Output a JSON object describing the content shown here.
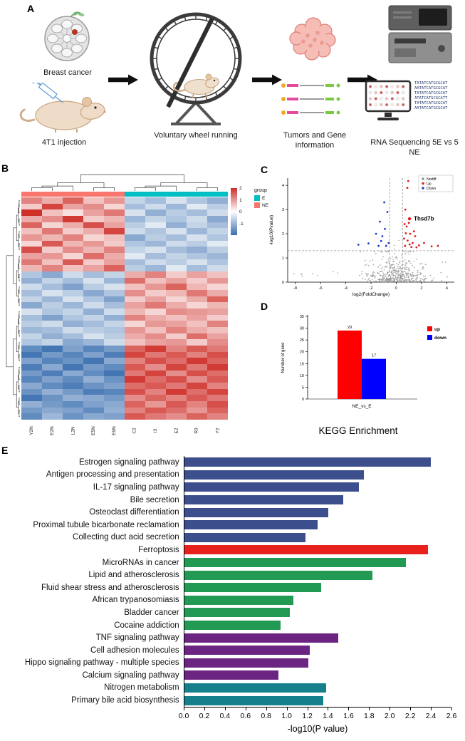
{
  "panels": {
    "a": "A",
    "b": "B",
    "c": "C",
    "d": "D",
    "e": "E"
  },
  "panel_a": {
    "labels": {
      "breast": "Breast cancer",
      "injection": "4T1 injection",
      "wheel": "Voluntary wheel running",
      "tumors": "Tumors and Gene information",
      "rnaseq": "RNA Sequencing 5E vs 5 NE"
    },
    "illustrations": [
      "breast-cancer-illustration",
      "mouse-injection-illustration",
      "running-wheel-illustration",
      "tumor-illustration",
      "gene-reads-illustration",
      "sequencer-illustration",
      "monitor-illustration"
    ],
    "sequence_lines": [
      "TATATCATGCGCAT",
      "AATATCATGCGCAT",
      "TATATCATGCGCAT",
      "ATATCATGCGCATT",
      "TATATCATGCGCAT",
      "AATATCATGCGCAT"
    ]
  },
  "chart_data": [
    {
      "id": "heatmap",
      "type": "heatmap",
      "legend_title": "group",
      "groups": [
        {
          "name": "E",
          "color": "#00BFC4"
        },
        {
          "name": "NE",
          "color": "#F8766D"
        }
      ],
      "scale_labels": [
        "2",
        "1",
        "0",
        "-1"
      ],
      "col_labels": [
        "Y2N",
        "E2N",
        "L2N",
        "E5N",
        "E9N",
        "C2",
        "I3",
        "E2",
        "R3",
        "Y2"
      ],
      "col_groups": [
        "NE",
        "NE",
        "NE",
        "NE",
        "NE",
        "E",
        "E",
        "E",
        "E",
        "E"
      ],
      "matrix": [
        [
          1.2,
          0.8,
          1.5,
          0.6,
          1.0,
          -0.6,
          -0.9,
          -0.4,
          -0.8,
          -1.1
        ],
        [
          0.5,
          1.8,
          0.9,
          1.1,
          0.4,
          -0.9,
          -0.5,
          -1.0,
          -0.3,
          -0.7
        ],
        [
          2.0,
          0.6,
          0.3,
          0.9,
          1.3,
          -0.4,
          -1.1,
          -0.7,
          -0.9,
          -0.5
        ],
        [
          0.8,
          1.1,
          1.9,
          0.5,
          0.7,
          -1.0,
          -0.6,
          -0.8,
          -0.5,
          -1.2
        ],
        [
          1.5,
          0.4,
          0.8,
          1.7,
          0.9,
          -0.7,
          -0.3,
          -1.1,
          -0.6,
          -0.9
        ],
        [
          0.6,
          1.3,
          0.5,
          0.8,
          1.8,
          -0.5,
          -0.8,
          -0.4,
          -1.0,
          -0.6
        ],
        [
          1.0,
          0.7,
          1.2,
          0.4,
          0.6,
          -1.2,
          -0.7,
          -0.9,
          -0.4,
          -0.8
        ],
        [
          0.4,
          1.6,
          0.7,
          1.0,
          0.5,
          -0.8,
          -1.0,
          -0.5,
          -0.7,
          -0.3
        ],
        [
          1.7,
          0.5,
          1.1,
          0.7,
          1.2,
          -0.6,
          -0.4,
          -0.9,
          -1.1,
          -0.7
        ],
        [
          0.9,
          1.0,
          0.4,
          1.4,
          0.8,
          -0.3,
          -0.9,
          -0.6,
          -0.8,
          -1.0
        ],
        [
          1.3,
          0.6,
          1.6,
          0.5,
          0.9,
          -0.9,
          -0.5,
          -0.7,
          -0.4,
          -0.8
        ],
        [
          0.7,
          1.2,
          0.6,
          0.9,
          1.5,
          -0.7,
          -1.0,
          -0.3,
          -0.9,
          -0.5
        ],
        [
          -0.8,
          -1.2,
          -0.5,
          -0.9,
          -0.6,
          0.8,
          1.2,
          0.5,
          0.9,
          0.6
        ],
        [
          -1.1,
          -0.6,
          -0.9,
          -0.4,
          -1.0,
          1.4,
          0.6,
          0.9,
          0.5,
          1.0
        ],
        [
          -0.5,
          -0.9,
          -1.3,
          -0.7,
          -0.4,
          0.6,
          1.0,
          1.5,
          0.7,
          0.4
        ],
        [
          -0.9,
          -0.4,
          -0.7,
          -1.2,
          -0.8,
          1.1,
          0.5,
          0.7,
          1.3,
          0.8
        ],
        [
          -0.6,
          -1.0,
          -0.4,
          -0.8,
          -1.3,
          0.5,
          0.9,
          0.4,
          0.8,
          1.5
        ],
        [
          -1.2,
          -0.7,
          -1.0,
          -0.5,
          -0.9,
          0.9,
          1.3,
          0.8,
          0.4,
          0.7
        ],
        [
          -0.4,
          -0.8,
          -0.6,
          -1.1,
          -0.5,
          0.7,
          0.4,
          1.1,
          1.0,
          0.9
        ],
        [
          -0.9,
          -1.3,
          -0.8,
          -0.6,
          -1.1,
          1.2,
          0.8,
          0.6,
          0.9,
          0.5
        ],
        [
          -0.7,
          -0.5,
          -1.1,
          -0.9,
          -0.6,
          0.4,
          1.0,
          0.9,
          0.6,
          1.2
        ],
        [
          -1.0,
          -0.9,
          -0.5,
          -0.7,
          -0.8,
          1.0,
          0.6,
          1.2,
          0.8,
          0.6
        ],
        [
          -0.6,
          -1.1,
          -0.9,
          -0.4,
          -0.7,
          0.8,
          1.1,
          0.5,
          1.4,
          0.9
        ],
        [
          -0.8,
          -0.6,
          -1.2,
          -1.0,
          -0.5,
          0.6,
          0.9,
          1.0,
          0.5,
          1.1
        ],
        [
          -1.6,
          -1.9,
          -1.3,
          -1.7,
          -1.4,
          1.5,
          1.9,
          1.2,
          1.6,
          1.3
        ],
        [
          -1.9,
          -1.4,
          -1.7,
          -1.3,
          -1.8,
          1.8,
          1.3,
          1.6,
          1.2,
          1.7
        ],
        [
          -1.3,
          -1.7,
          -1.5,
          -1.9,
          -1.2,
          1.2,
          1.7,
          1.4,
          1.9,
          1.5
        ],
        [
          -1.8,
          -1.2,
          -1.9,
          -1.4,
          -1.6,
          1.6,
          1.1,
          1.8,
          1.3,
          1.9
        ],
        [
          -1.4,
          -1.8,
          -1.2,
          -1.6,
          -1.9,
          1.3,
          1.8,
          1.1,
          1.7,
          1.4
        ],
        [
          -1.7,
          -1.3,
          -1.6,
          -1.1,
          -1.5,
          1.9,
          1.4,
          1.7,
          1.1,
          1.6
        ],
        [
          -1.2,
          -1.6,
          -1.8,
          -1.5,
          -1.3,
          1.4,
          1.6,
          1.3,
          1.8,
          1.2
        ],
        [
          -1.5,
          -1.1,
          -1.4,
          -1.8,
          -1.7,
          1.7,
          1.2,
          1.9,
          1.4,
          1.8
        ],
        [
          -1.9,
          -1.5,
          -1.1,
          -1.2,
          -1.4,
          1.1,
          1.5,
          1.2,
          1.6,
          1.3
        ],
        [
          -1.1,
          -1.4,
          -1.6,
          -1.3,
          -1.2,
          1.5,
          1.0,
          1.6,
          1.2,
          1.7
        ],
        [
          -1.4,
          -1.2,
          -1.3,
          -1.6,
          -1.1,
          1.2,
          1.6,
          1.4,
          1.0,
          1.5
        ],
        [
          -1.6,
          -1.0,
          -1.5,
          -1.2,
          -1.3,
          1.6,
          1.3,
          1.1,
          1.5,
          1.2
        ]
      ]
    },
    {
      "id": "volcano",
      "type": "scatter",
      "xlabel": "log2(FoldChange)",
      "ylabel": "-log10(Pvalue)",
      "xlim": [
        -8.6,
        4.6
      ],
      "ylim": [
        0,
        4.3
      ],
      "xticks": [
        -8,
        -6,
        -4,
        -2,
        0,
        2,
        4
      ],
      "yticks": [
        0,
        1,
        2,
        3,
        4
      ],
      "thresholds": {
        "x": [
          -0.5,
          0.5
        ],
        "y": 1.3
      },
      "legend": [
        {
          "name": "Nodiff",
          "color": "#8f8f8f"
        },
        {
          "name": "Up",
          "color": "#e31a1c"
        },
        {
          "name": "Down",
          "color": "#1f3ec4"
        }
      ],
      "highlight": {
        "name": "Thsd7b",
        "x": 1.05,
        "y": 2.62
      },
      "up_points": [
        [
          0.7,
          1.5
        ],
        [
          0.9,
          1.72
        ],
        [
          1.1,
          2.0
        ],
        [
          0.82,
          2.3
        ],
        [
          1.3,
          1.62
        ],
        [
          1.5,
          1.9
        ],
        [
          0.72,
          3.0
        ],
        [
          1.0,
          2.45
        ],
        [
          0.88,
          3.9
        ],
        [
          1.2,
          1.45
        ],
        [
          1.8,
          1.52
        ],
        [
          2.2,
          1.62
        ],
        [
          0.62,
          1.8
        ],
        [
          1.4,
          2.1
        ],
        [
          0.76,
          2.02
        ],
        [
          2.8,
          1.48
        ],
        [
          1.6,
          1.44
        ],
        [
          0.66,
          2.4
        ],
        [
          3.3,
          1.5
        ],
        [
          1.06,
          1.56
        ],
        [
          0.95,
          4.18
        ]
      ],
      "down_points": [
        [
          -0.8,
          1.5
        ],
        [
          -1.2,
          1.7
        ],
        [
          -1.6,
          2.0
        ],
        [
          -0.9,
          2.2
        ],
        [
          -2.2,
          1.6
        ],
        [
          -1.1,
          1.9
        ],
        [
          -0.7,
          2.9
        ],
        [
          -1.4,
          1.5
        ],
        [
          -3.0,
          1.55
        ],
        [
          -0.95,
          3.3
        ],
        [
          -1.3,
          2.5
        ],
        [
          -0.6,
          1.62
        ]
      ],
      "background": {
        "count": 430,
        "seed": 7
      }
    },
    {
      "id": "deg_counts",
      "type": "bar",
      "categories": [
        "NE_vs_E"
      ],
      "series": [
        {
          "name": "up",
          "color": "#ff0000",
          "values": [
            29
          ]
        },
        {
          "name": "down",
          "color": "#0000ff",
          "values": [
            17
          ]
        }
      ],
      "ylabel": "Number of gene",
      "ylim": [
        0,
        35
      ],
      "yticks": [
        0,
        5,
        10,
        15,
        20,
        25,
        30,
        35
      ]
    },
    {
      "id": "kegg",
      "type": "bar",
      "title": "KEGG Enrichment",
      "xlabel": "-log10(P value)",
      "xlim": [
        0,
        2.6
      ],
      "xticks": [
        "0.0",
        "0.2",
        "0.4",
        "0.6",
        "0.8",
        "1.0",
        "1.2",
        "1.4",
        "1.6",
        "1.8",
        "2.0",
        "2.2",
        "2.4",
        "2.6"
      ],
      "categories": [
        "Estrogen signaling pathway",
        "Antigen processing and presentation",
        "IL-17 signaling pathway",
        "Bile secretion",
        "Osteoclast differentiation",
        "Proximal tubule bicarbonate reclamation",
        "Collecting duct acid secretion",
        "Ferroptosis",
        "MicroRNAs in cancer",
        "Lipid and atherosclerosis",
        "Fluid shear stress and atherosclerosis",
        "African trypanosomiasis",
        "Bladder cancer",
        "Cocaine addiction",
        "TNF signaling pathway",
        "Cell adhesion molecules",
        "Hippo signaling pathway - multiple species",
        "Calcium signaling pathway",
        "Nitrogen metabolism",
        "Primary bile acid biosynthesis"
      ],
      "values": [
        2.4,
        1.75,
        1.7,
        1.55,
        1.4,
        1.3,
        1.18,
        2.37,
        2.16,
        1.83,
        1.33,
        1.06,
        1.03,
        0.94,
        1.5,
        1.22,
        1.21,
        0.92,
        1.38,
        1.35
      ],
      "colors": [
        "#3c4e8c",
        "#3c4e8c",
        "#3c4e8c",
        "#3c4e8c",
        "#3c4e8c",
        "#3c4e8c",
        "#3c4e8c",
        "#e8211d",
        "#239a53",
        "#239a53",
        "#239a53",
        "#239a53",
        "#239a53",
        "#239a53",
        "#6c2483",
        "#6c2483",
        "#6c2483",
        "#6c2483",
        "#15808b",
        "#15808b"
      ]
    }
  ]
}
